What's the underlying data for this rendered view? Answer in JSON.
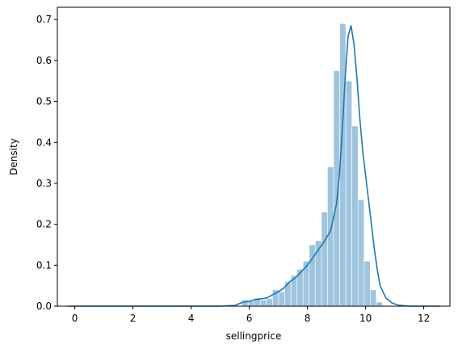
{
  "chart_data": {
    "type": "histogram",
    "title": "",
    "xlabel": "sellingprice",
    "ylabel": "Density",
    "xlim": [
      -0.6,
      12.9
    ],
    "ylim": [
      0,
      0.73
    ],
    "xticks": [
      0,
      2,
      4,
      6,
      8,
      10,
      12
    ],
    "yticks": [
      0.0,
      0.1,
      0.2,
      0.3,
      0.4,
      0.5,
      0.6,
      0.7
    ],
    "grid": false,
    "legend": "none",
    "colors": {
      "bars": "#9fc4df",
      "kde": "#1f77b4",
      "axes": "#000000"
    },
    "bins": {
      "edges_start": 5.75,
      "width": 0.21,
      "heights": [
        0.015,
        0.013,
        0.02,
        0.015,
        0.018,
        0.04,
        0.035,
        0.06,
        0.075,
        0.09,
        0.11,
        0.15,
        0.16,
        0.23,
        0.34,
        0.575,
        0.69,
        0.55,
        0.44,
        0.26,
        0.11,
        0.04,
        0.01
      ]
    },
    "kde": {
      "x": [
        -0.25,
        5.0,
        5.5,
        5.8,
        6.0,
        6.2,
        6.4,
        6.6,
        6.8,
        7.0,
        7.2,
        7.4,
        7.6,
        7.8,
        8.0,
        8.2,
        8.4,
        8.6,
        8.8,
        9.0,
        9.1,
        9.2,
        9.3,
        9.4,
        9.5,
        9.6,
        9.7,
        9.8,
        9.9,
        10.0,
        10.1,
        10.2,
        10.3,
        10.4,
        10.5,
        10.7,
        10.9,
        11.1,
        11.5,
        12.0,
        12.55
      ],
      "y": [
        0.0,
        0.0,
        0.002,
        0.01,
        0.012,
        0.016,
        0.018,
        0.02,
        0.028,
        0.035,
        0.045,
        0.06,
        0.07,
        0.085,
        0.1,
        0.12,
        0.14,
        0.16,
        0.185,
        0.25,
        0.32,
        0.43,
        0.56,
        0.66,
        0.685,
        0.64,
        0.56,
        0.46,
        0.38,
        0.32,
        0.26,
        0.2,
        0.14,
        0.09,
        0.05,
        0.02,
        0.008,
        0.003,
        0.0,
        0.0,
        0.0
      ]
    }
  }
}
